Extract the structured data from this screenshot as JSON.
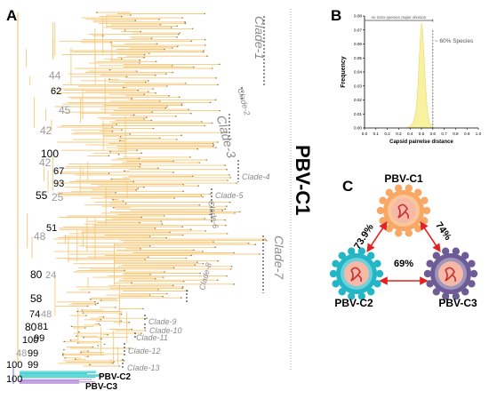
{
  "panel_a": {
    "letter": "A",
    "group_label": "PBV-C1",
    "clades": [
      "Clade-1",
      "Clade-2",
      "Clade-3",
      "Clade-4",
      "Clade-5",
      "Clade-6",
      "Clade-7",
      "Clade-8",
      "Clade-9",
      "Clade-10",
      "Clade-11",
      "Clade-12",
      "Clade-13"
    ],
    "bootstrap": [
      "44",
      "62",
      "45",
      "42",
      "100",
      "42",
      "67",
      "93",
      "55",
      "25",
      "51",
      "48",
      "80",
      "24",
      "58",
      "74",
      "48",
      "80",
      "81",
      "100",
      "99",
      "48",
      "99",
      "100",
      "99",
      "100"
    ],
    "group_c2": "PBV-C2",
    "group_c3": "PBV-C3",
    "colors": {
      "c1_branches": "#f5c87a",
      "c2_branches": "#3fd0d0",
      "c3_branches": "#b18ad9"
    }
  },
  "panel_b": {
    "letter": "B",
    "chart_data": {
      "type": "area",
      "xlabel": "Capsid pairwise distance",
      "ylabel": "Frequency",
      "xlim": [
        0.0,
        1.0
      ],
      "ylim": [
        0.0,
        0.08
      ],
      "x_ticks": [
        "0.0",
        "0.1",
        "0.2",
        "0.3",
        "0.4",
        "0.5",
        "0.6",
        "0.7",
        "0.8",
        "0.9",
        "1.0"
      ],
      "y_ticks": [
        "0.00",
        "0.01",
        "0.02",
        "0.03",
        "0.04",
        "0.05",
        "0.06",
        "0.07",
        "0.08"
      ],
      "series": [
        {
          "x": [
            0.37,
            0.4,
            0.42,
            0.44,
            0.45,
            0.46,
            0.47,
            0.48,
            0.49,
            0.5,
            0.51,
            0.52,
            0.53,
            0.54,
            0.55,
            0.56,
            0.57,
            0.59,
            0.61
          ],
          "y": [
            0.0,
            0.001,
            0.003,
            0.007,
            0.012,
            0.02,
            0.032,
            0.048,
            0.063,
            0.075,
            0.07,
            0.055,
            0.04,
            0.026,
            0.015,
            0.008,
            0.004,
            0.001,
            0.0
          ]
        }
      ],
      "annotations": {
        "top_bracket": "no intra-species major division",
        "cutoff_label": "~ 60% Species",
        "cutoff_x": 0.6
      },
      "fill_color": "#f7f1a0"
    }
  },
  "panel_c": {
    "letter": "C",
    "nodes": {
      "c1": "PBV-C1",
      "c2": "PBV-C2",
      "c3": "PBV-C3"
    },
    "edges": {
      "c1_c2": "73.9%",
      "c1_c3": "74%",
      "c2_c3": "69%"
    },
    "colors": {
      "c1": "#f8a864",
      "c2": "#22b6c6",
      "c3": "#6e5c96",
      "arrow": "#e22222"
    }
  }
}
